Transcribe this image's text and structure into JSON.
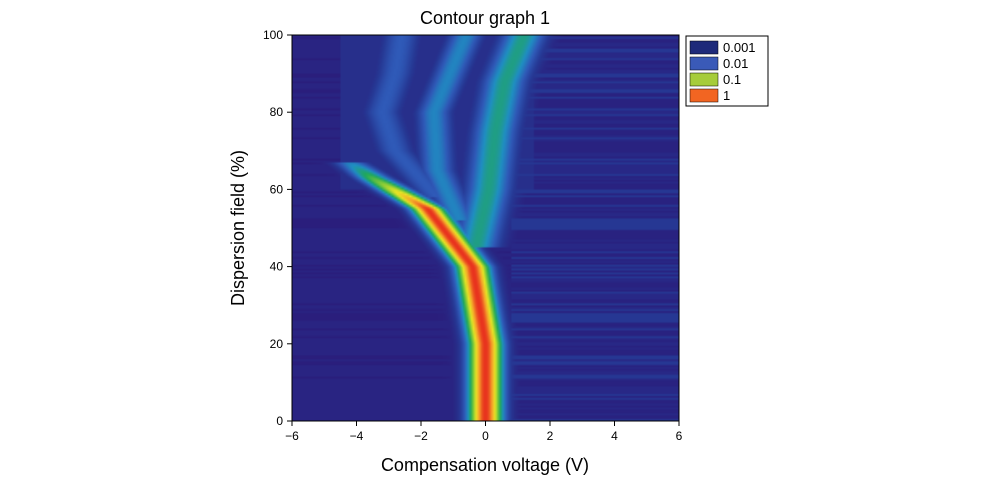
{
  "chart_data": {
    "type": "heatmap",
    "title": "Contour graph 1",
    "xlabel": "Compensation voltage (V)",
    "ylabel": "Dispersion field (%)",
    "xlim": [
      -6,
      6
    ],
    "ylim": [
      0,
      100
    ],
    "x_ticks": [
      -6,
      -4,
      -2,
      0,
      2,
      4,
      6
    ],
    "x_tick_labels": [
      "−6",
      "−4",
      "−2",
      "0",
      "2",
      "4",
      "6"
    ],
    "y_ticks": [
      0,
      20,
      40,
      60,
      80,
      100
    ],
    "y_tick_labels": [
      "0",
      "20",
      "40",
      "60",
      "80",
      "100"
    ],
    "legend_position": "top-right",
    "legend": [
      {
        "label": "0.001",
        "color": "#1e2a7a"
      },
      {
        "label": "0.01",
        "color": "#3a5ab8"
      },
      {
        "label": "0.1",
        "color": "#a6cc3a"
      },
      {
        "label": "1",
        "color": "#f26522"
      }
    ],
    "colorscale": [
      "#2a1e7c",
      "#263894",
      "#2f5ab8",
      "#1f8fc2",
      "#1fa85a",
      "#7cc83a",
      "#e7e625",
      "#f5a52a",
      "#e8321e"
    ],
    "background_color": "#28308a",
    "contour_branches": [
      {
        "name": "main",
        "points": [
          [
            0,
            0
          ],
          [
            0,
            20
          ],
          [
            -0.4,
            40
          ],
          [
            -1.8,
            55
          ],
          [
            -3.5,
            63
          ],
          [
            -4.2,
            67
          ]
        ],
        "peak": 1.0,
        "width": 0.55
      },
      {
        "name": "upper-left",
        "points": [
          [
            -1.5,
            58
          ],
          [
            -2.8,
            70
          ],
          [
            -3.2,
            80
          ],
          [
            -2.8,
            90
          ],
          [
            -2.6,
            100
          ]
        ],
        "peak": 0.25,
        "width": 0.6
      },
      {
        "name": "middle",
        "points": [
          [
            -0.8,
            52
          ],
          [
            -1.5,
            65
          ],
          [
            -1.6,
            80
          ],
          [
            -1.0,
            92
          ],
          [
            -0.6,
            100
          ]
        ],
        "peak": 0.35,
        "width": 0.55
      },
      {
        "name": "right",
        "points": [
          [
            -0.3,
            45
          ],
          [
            0.1,
            60
          ],
          [
            0.3,
            75
          ],
          [
            0.6,
            88
          ],
          [
            1.2,
            100
          ]
        ],
        "peak": 0.45,
        "width": 0.7
      }
    ]
  }
}
